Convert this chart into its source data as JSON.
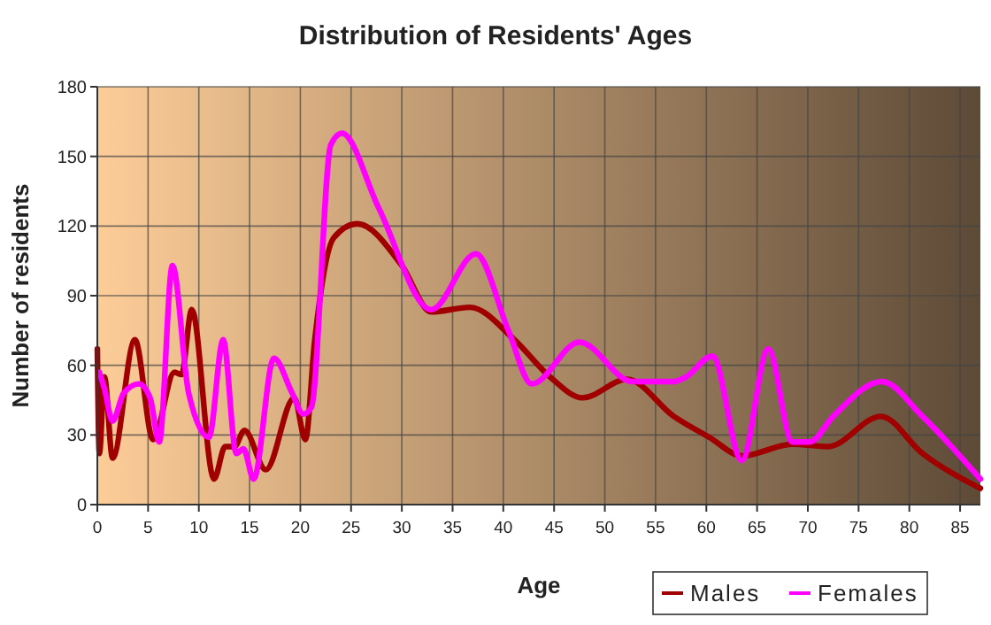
{
  "chart_data": {
    "type": "line",
    "title": "Distribution of Residents' Ages",
    "xlabel": "Age",
    "ylabel": "Number of residents",
    "xlim": [
      0,
      87
    ],
    "xticks": [
      0,
      5,
      10,
      15,
      20,
      25,
      30,
      35,
      40,
      45,
      50,
      55,
      60,
      65,
      70,
      75,
      80,
      85
    ],
    "ylim": [
      0,
      180
    ],
    "yticks": [
      0,
      30,
      60,
      90,
      120,
      150,
      180
    ],
    "grid": true,
    "legend": "bottom right",
    "marker": "none",
    "line_style": "solid",
    "series": [
      {
        "name": "Males",
        "color": "#a00000",
        "x": [
          0,
          0.2,
          0.7,
          1.5,
          3.7,
          5.5,
          7.6,
          8.3,
          9.3,
          11.5,
          12.6,
          13.5,
          14.5,
          16.6,
          19.4,
          20.5,
          21.4,
          23.3,
          25.6,
          30,
          32.9,
          36.7,
          41.1,
          44.6,
          47.8,
          52.2,
          56.8,
          60.3,
          63.5,
          68.5,
          72,
          77.2,
          81.3,
          87
        ],
        "values": [
          67,
          22,
          55,
          20,
          71,
          28,
          57,
          56,
          84,
          11,
          25,
          25,
          32,
          15,
          46,
          28,
          70,
          115,
          121,
          103,
          83,
          85,
          71,
          55,
          46,
          54,
          38,
          29,
          21,
          26,
          25,
          38,
          22,
          7
        ]
      },
      {
        "name": "Females",
        "color": "#ff00ff",
        "x": [
          0.2,
          0.7,
          1.5,
          2.6,
          4.1,
          5.2,
          6.1,
          7.4,
          9,
          11,
          12.4,
          13.7,
          14.4,
          15.4,
          17.4,
          19.2,
          20.3,
          21.1,
          23,
          24.1,
          27.7,
          32.9,
          37.3,
          40.5,
          42.8,
          47.5,
          52.7,
          56.8,
          58,
          60.6,
          63.5,
          66.1,
          68.5,
          70.2,
          72.5,
          77.3,
          81.3,
          87
        ],
        "values": [
          57,
          50,
          36,
          48,
          52,
          46,
          27,
          103,
          48,
          29,
          71,
          22,
          24,
          11,
          63,
          48,
          39,
          42,
          155,
          160,
          128,
          84,
          108,
          75,
          52,
          70,
          53,
          53,
          55,
          64,
          19,
          67,
          27,
          27,
          38,
          53,
          38,
          11
        ]
      }
    ]
  }
}
